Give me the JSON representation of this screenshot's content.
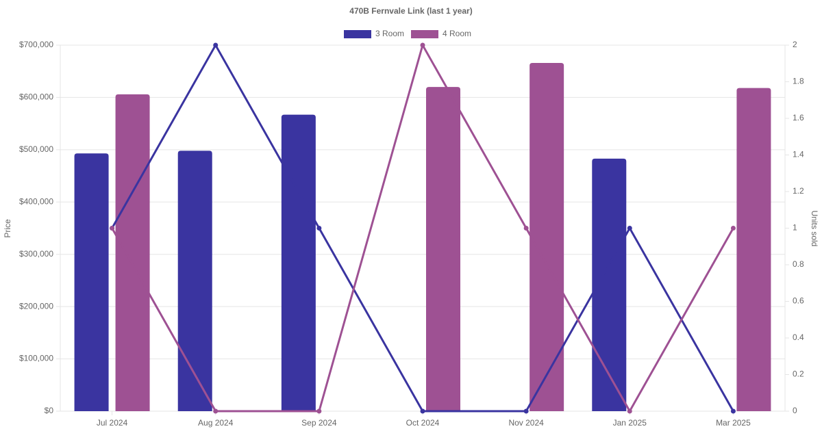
{
  "chart_data": {
    "type": "bar-line",
    "title": "470B Fernvale Link (last 1 year)",
    "y_label": "Price",
    "y2_label": "Units sold",
    "categories": [
      "Jul 2024",
      "Aug 2024",
      "Sep 2024",
      "Oct 2024",
      "Nov 2024",
      "Jan 2025",
      "Mar 2025"
    ],
    "series": [
      {
        "name": "3 Room",
        "type": "bar",
        "color": "#3a34a0",
        "values": [
          493000,
          498000,
          567000,
          null,
          null,
          483000,
          null
        ]
      },
      {
        "name": "4 Room",
        "type": "bar",
        "color": "#9e5193",
        "values": [
          606000,
          null,
          null,
          620000,
          666000,
          null,
          618000
        ]
      },
      {
        "name": "3 Room",
        "type": "line",
        "axis": "y2",
        "color": "#3a34a0",
        "values": [
          1,
          2,
          1,
          0,
          0,
          1,
          0
        ]
      },
      {
        "name": "4 Room",
        "type": "line",
        "axis": "y2",
        "color": "#9e5193",
        "values": [
          1,
          0,
          0,
          2,
          1,
          0,
          1
        ]
      }
    ],
    "ylim": [
      0,
      700000
    ],
    "yticks": [
      {
        "value": 0,
        "label": "$0"
      },
      {
        "value": 100000,
        "label": "$100,000"
      },
      {
        "value": 200000,
        "label": "$200,000"
      },
      {
        "value": 300000,
        "label": "$300,000"
      },
      {
        "value": 400000,
        "label": "$400,000"
      },
      {
        "value": 500000,
        "label": "$500,000"
      },
      {
        "value": 600000,
        "label": "$600,000"
      },
      {
        "value": 700000,
        "label": "$700,000"
      }
    ],
    "y2lim": [
      0,
      2
    ],
    "y2ticks": [
      0,
      0.2,
      0.4,
      0.6,
      0.8,
      1,
      1.2,
      1.4,
      1.6,
      1.8,
      2
    ],
    "grid": true,
    "legend": "top"
  }
}
